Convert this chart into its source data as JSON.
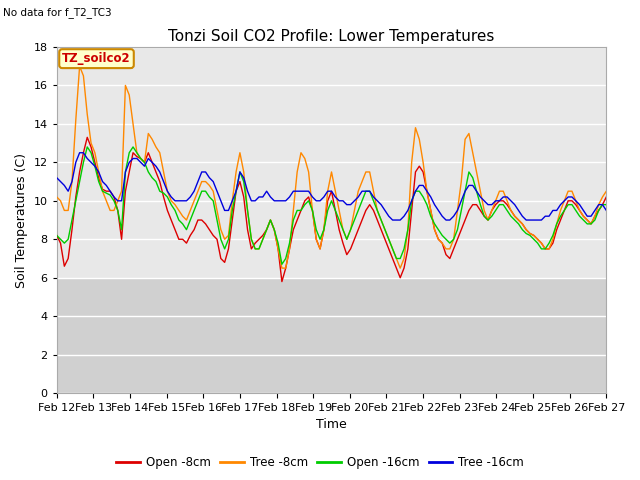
{
  "title": "Tonzi Soil CO2 Profile: Lower Temperatures",
  "no_data_label": "No data for f_T2_TC3",
  "legend_label": "TZ_soilco2",
  "xlabel": "Time",
  "ylabel": "Soil Temperatures (C)",
  "ylim": [
    0,
    18
  ],
  "yticks": [
    0,
    2,
    4,
    6,
    8,
    10,
    12,
    14,
    16,
    18
  ],
  "x_labels": [
    "Feb 12",
    "Feb 13",
    "Feb 14",
    "Feb 15",
    "Feb 16",
    "Feb 17",
    "Feb 18",
    "Feb 19",
    "Feb 20",
    "Feb 21",
    "Feb 22",
    "Feb 23",
    "Feb 24",
    "Feb 25",
    "Feb 26",
    "Feb 27"
  ],
  "series_labels": [
    "Open -8cm",
    "Tree -8cm",
    "Open -16cm",
    "Tree -16cm"
  ],
  "series_colors": [
    "#dd0000",
    "#ff8800",
    "#00cc00",
    "#0000dd"
  ],
  "background_color": "#ffffff",
  "plot_bg_color": "#e8e8e8",
  "lower_bg_color": "#d0d0d0",
  "grid_color": "#ffffff",
  "title_fontsize": 11,
  "axis_fontsize": 9,
  "tick_fontsize": 8,
  "legend_box_color": "#ffffcc",
  "legend_box_edge": "#cc8800",
  "open_8cm": [
    8.2,
    7.8,
    6.6,
    7.0,
    8.5,
    10.2,
    11.5,
    12.5,
    13.3,
    12.8,
    12.0,
    11.2,
    10.6,
    10.5,
    10.5,
    10.2,
    9.5,
    8.0,
    10.5,
    11.5,
    12.5,
    12.3,
    12.2,
    12.0,
    12.5,
    12.0,
    11.5,
    11.0,
    10.2,
    9.5,
    9.0,
    8.5,
    8.0,
    8.0,
    7.8,
    8.2,
    8.5,
    9.0,
    9.0,
    8.8,
    8.5,
    8.2,
    8.0,
    7.0,
    6.8,
    7.5,
    9.0,
    10.5,
    11.0,
    10.2,
    8.5,
    7.5,
    7.8,
    8.0,
    8.2,
    8.5,
    9.0,
    8.5,
    7.5,
    5.8,
    6.5,
    7.5,
    8.5,
    9.0,
    9.5,
    10.0,
    10.2,
    9.5,
    8.0,
    7.5,
    8.5,
    10.0,
    10.5,
    9.5,
    8.5,
    7.8,
    7.2,
    7.5,
    8.0,
    8.5,
    9.0,
    9.5,
    9.8,
    9.5,
    9.0,
    8.5,
    8.0,
    7.5,
    7.0,
    6.5,
    6.0,
    6.5,
    7.5,
    9.5,
    11.5,
    11.8,
    11.5,
    10.5,
    9.5,
    8.5,
    8.0,
    7.8,
    7.2,
    7.0,
    7.5,
    8.0,
    8.5,
    9.0,
    9.5,
    9.8,
    9.8,
    9.5,
    9.2,
    9.0,
    9.5,
    9.8,
    10.0,
    10.0,
    9.8,
    9.5,
    9.2,
    9.0,
    8.8,
    8.5,
    8.3,
    8.2,
    8.0,
    7.8,
    7.5,
    7.5,
    7.8,
    8.5,
    9.0,
    9.5,
    10.0,
    10.0,
    9.8,
    9.5,
    9.2,
    9.0,
    8.8,
    9.2,
    9.5,
    9.8,
    10.2
  ],
  "tree_8cm": [
    10.2,
    10.0,
    9.5,
    9.5,
    11.0,
    14.2,
    17.0,
    16.5,
    14.5,
    13.0,
    12.5,
    11.5,
    10.5,
    10.0,
    9.5,
    9.5,
    10.0,
    10.5,
    16.0,
    15.5,
    14.0,
    12.5,
    12.2,
    12.0,
    13.5,
    13.2,
    12.8,
    12.5,
    11.5,
    10.5,
    10.0,
    9.8,
    9.5,
    9.2,
    9.0,
    9.5,
    10.0,
    10.5,
    11.0,
    11.0,
    10.8,
    10.5,
    9.5,
    8.5,
    8.0,
    8.2,
    10.0,
    11.5,
    12.5,
    11.5,
    9.5,
    8.0,
    7.5,
    7.5,
    8.0,
    8.5,
    9.0,
    8.5,
    7.5,
    6.5,
    6.5,
    7.5,
    9.5,
    11.5,
    12.5,
    12.2,
    11.5,
    9.5,
    8.0,
    7.5,
    8.5,
    10.5,
    11.5,
    10.5,
    9.5,
    8.5,
    8.0,
    8.5,
    9.5,
    10.5,
    11.0,
    11.5,
    11.5,
    10.5,
    9.5,
    9.0,
    8.5,
    8.0,
    7.5,
    7.0,
    6.5,
    7.0,
    8.5,
    12.0,
    13.8,
    13.2,
    12.0,
    10.5,
    9.5,
    8.5,
    8.0,
    7.8,
    7.5,
    7.5,
    8.0,
    9.5,
    11.0,
    13.2,
    13.5,
    12.5,
    11.5,
    10.5,
    9.5,
    9.0,
    9.5,
    10.0,
    10.5,
    10.5,
    10.0,
    9.5,
    9.2,
    9.0,
    8.8,
    8.5,
    8.3,
    8.2,
    8.0,
    7.8,
    7.5,
    7.5,
    8.0,
    8.8,
    9.5,
    10.0,
    10.5,
    10.5,
    10.0,
    9.5,
    9.2,
    9.0,
    8.8,
    9.2,
    9.8,
    10.2,
    10.5
  ],
  "open_16cm": [
    8.2,
    8.0,
    7.8,
    8.0,
    9.0,
    10.0,
    11.0,
    12.0,
    12.8,
    12.5,
    11.8,
    11.0,
    10.5,
    10.4,
    10.3,
    10.0,
    9.5,
    8.5,
    11.5,
    12.5,
    12.8,
    12.5,
    12.2,
    12.0,
    11.5,
    11.2,
    11.0,
    10.5,
    10.4,
    10.2,
    9.8,
    9.5,
    9.0,
    8.8,
    8.5,
    9.0,
    9.5,
    10.0,
    10.5,
    10.5,
    10.2,
    10.0,
    9.0,
    8.0,
    7.5,
    8.0,
    9.5,
    10.5,
    11.5,
    11.0,
    9.5,
    8.0,
    7.5,
    7.5,
    8.0,
    8.5,
    9.0,
    8.5,
    7.8,
    6.7,
    7.0,
    7.8,
    9.0,
    9.5,
    9.5,
    9.8,
    10.0,
    9.5,
    8.5,
    8.0,
    8.5,
    9.5,
    10.0,
    9.5,
    9.0,
    8.5,
    8.0,
    8.5,
    9.0,
    9.5,
    10.0,
    10.5,
    10.5,
    10.0,
    9.5,
    9.0,
    8.5,
    8.0,
    7.5,
    7.0,
    7.0,
    7.5,
    8.5,
    10.0,
    10.5,
    10.5,
    10.2,
    9.8,
    9.2,
    8.8,
    8.5,
    8.2,
    8.0,
    7.8,
    8.0,
    8.5,
    9.5,
    10.5,
    11.5,
    11.2,
    10.5,
    9.8,
    9.2,
    9.0,
    9.2,
    9.5,
    9.8,
    9.8,
    9.5,
    9.2,
    9.0,
    8.8,
    8.5,
    8.3,
    8.2,
    8.0,
    7.8,
    7.5,
    7.5,
    7.8,
    8.2,
    8.8,
    9.2,
    9.5,
    9.8,
    9.8,
    9.5,
    9.2,
    9.0,
    8.8,
    8.8,
    9.0,
    9.5,
    9.8,
    9.8
  ],
  "tree_16cm": [
    11.2,
    11.0,
    10.8,
    10.5,
    11.0,
    12.0,
    12.5,
    12.5,
    12.2,
    12.0,
    11.8,
    11.5,
    11.0,
    10.8,
    10.5,
    10.2,
    10.0,
    10.0,
    11.5,
    12.0,
    12.2,
    12.2,
    12.0,
    11.8,
    12.2,
    12.0,
    11.8,
    11.5,
    11.0,
    10.5,
    10.2,
    10.0,
    10.0,
    10.0,
    10.0,
    10.2,
    10.5,
    11.0,
    11.5,
    11.5,
    11.2,
    11.0,
    10.5,
    10.0,
    9.5,
    9.5,
    10.0,
    10.5,
    11.5,
    11.2,
    10.5,
    10.0,
    10.0,
    10.2,
    10.2,
    10.5,
    10.2,
    10.0,
    10.0,
    10.0,
    10.0,
    10.2,
    10.5,
    10.5,
    10.5,
    10.5,
    10.5,
    10.2,
    10.0,
    10.0,
    10.2,
    10.5,
    10.5,
    10.2,
    10.0,
    10.0,
    9.8,
    9.8,
    10.0,
    10.2,
    10.5,
    10.5,
    10.5,
    10.2,
    10.0,
    9.8,
    9.5,
    9.2,
    9.0,
    9.0,
    9.0,
    9.2,
    9.5,
    10.0,
    10.5,
    10.8,
    10.8,
    10.5,
    10.2,
    9.8,
    9.5,
    9.2,
    9.0,
    9.0,
    9.2,
    9.5,
    10.0,
    10.5,
    10.8,
    10.8,
    10.5,
    10.2,
    10.0,
    9.8,
    9.8,
    10.0,
    10.0,
    10.2,
    10.2,
    10.0,
    9.8,
    9.5,
    9.2,
    9.0,
    9.0,
    9.0,
    9.0,
    9.0,
    9.2,
    9.2,
    9.5,
    9.5,
    9.8,
    10.0,
    10.2,
    10.2,
    10.0,
    9.8,
    9.5,
    9.2,
    9.2,
    9.5,
    9.8,
    9.8,
    9.5
  ]
}
